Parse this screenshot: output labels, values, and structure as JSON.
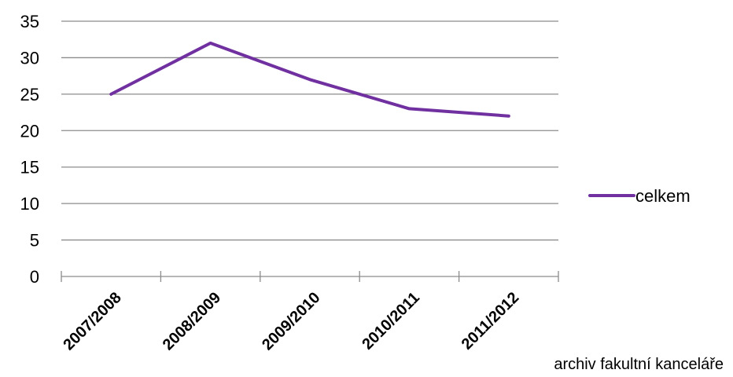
{
  "chart_data": {
    "type": "line",
    "categories": [
      "2007/2008",
      "2008/2009",
      "2009/2010",
      "2010/2011",
      "2011/2012"
    ],
    "series": [
      {
        "name": "celkem",
        "values": [
          25,
          32,
          27,
          23,
          22
        ],
        "color": "#7030A0"
      }
    ],
    "ylim": [
      0,
      35
    ],
    "yticks": [
      0,
      5,
      10,
      15,
      20,
      25,
      30,
      35
    ],
    "grid": true,
    "legend_position": "right"
  },
  "source_note": "archiv fakultní kanceláře"
}
